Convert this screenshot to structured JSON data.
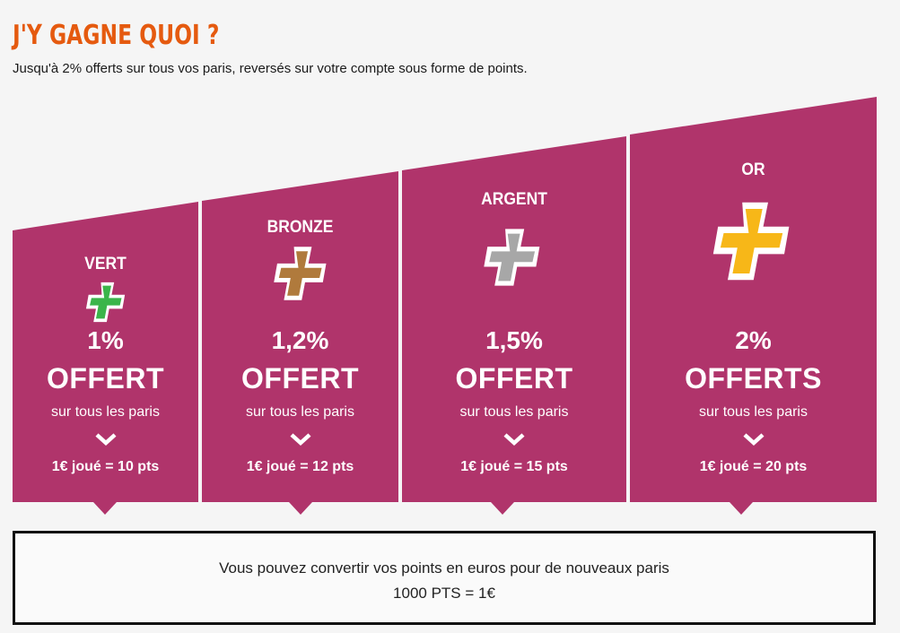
{
  "header": {
    "title": "J'Y GAGNE QUOI ?",
    "subtitle": "Jusqu'à 2% offerts sur tous vos paris, reversés sur votre compte sous forme de points."
  },
  "tiers": [
    {
      "name": "VERT",
      "color": "#3bb54a",
      "percent": "1%",
      "offer": "OFFERT",
      "scope": "sur tous les paris",
      "rate": "1€ joué = 10 pts"
    },
    {
      "name": "BRONZE",
      "color": "#b07a3c",
      "percent": "1,2%",
      "offer": "OFFERT",
      "scope": "sur tous les paris",
      "rate": "1€ joué = 12 pts"
    },
    {
      "name": "ARGENT",
      "color": "#a7a7a7",
      "percent": "1,5%",
      "offer": "OFFERT",
      "scope": "sur tous les paris",
      "rate": "1€ joué = 15 pts"
    },
    {
      "name": "OR",
      "color": "#f7b718",
      "percent": "2%",
      "offer": "OFFERTS",
      "scope": "sur tous les paris",
      "rate": "1€ joué = 20 pts"
    }
  ],
  "conversion": {
    "line1": "Vous pouvez convertir vos points en euros pour de nouveaux paris",
    "line2": "1000 PTS = 1€"
  },
  "colors": {
    "accent": "#e55a0f",
    "tier_bg": "#b0346b"
  }
}
